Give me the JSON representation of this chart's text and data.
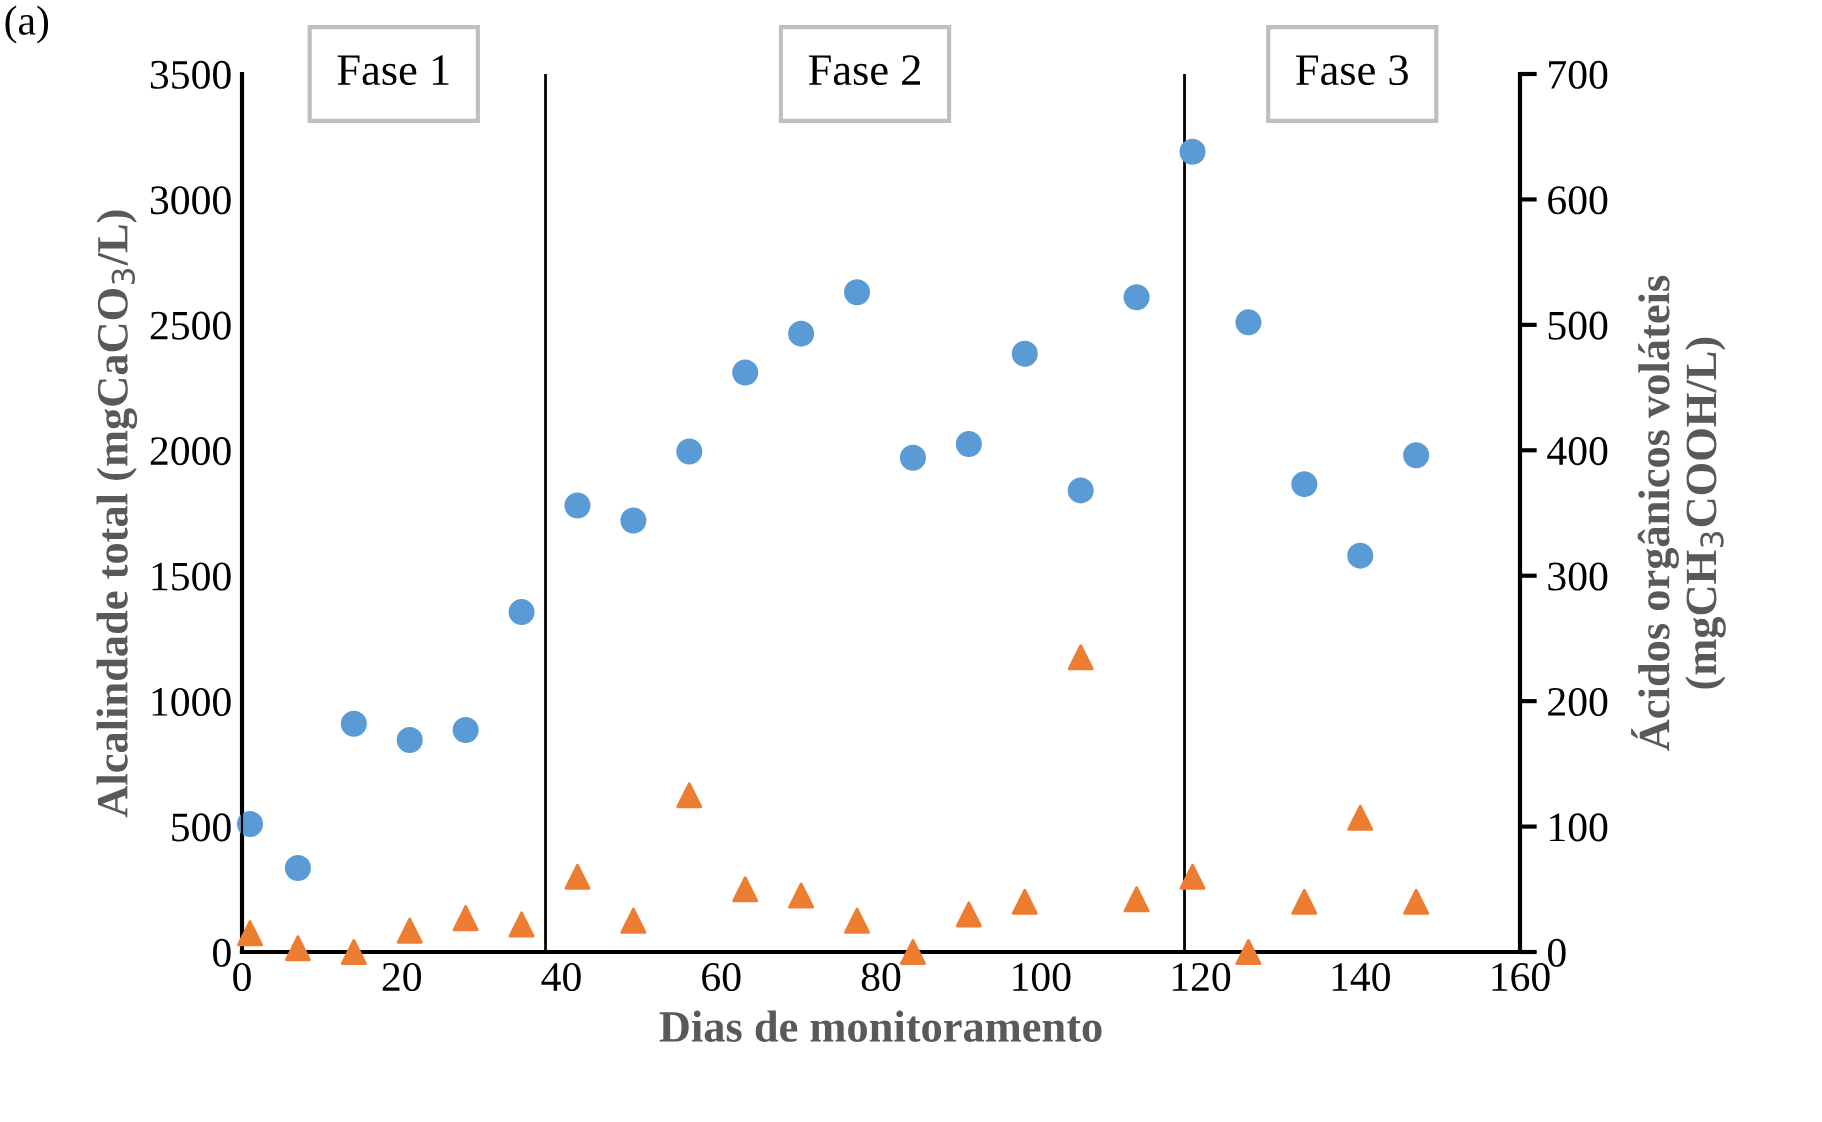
{
  "chart_data": {
    "type": "scatter",
    "xlabel": "Dias de monitoramento",
    "ylabel": "Alcalindade total (mgCaCO$_{3}$/L)",
    "y2label": "Ácidos orgânicos voláteis\n(mgCH$_{3}$COOH/L)",
    "annotations": [
      "(a)",
      "Fase 1",
      "Fase 2",
      "Fase 3"
    ],
    "x": [
      1,
      7,
      14,
      21,
      28,
      35,
      42,
      49,
      56,
      63,
      70,
      77,
      84,
      91,
      98,
      105,
      112,
      119,
      126,
      133,
      140,
      147
    ],
    "series": [
      {
        "color": "#5b9bd5",
        "marker": "circle",
        "values": [
          510,
          335,
          910,
          845,
          885,
          1355,
          1780,
          1720,
          1995,
          2310,
          2465,
          2630,
          1970,
          2025,
          2385,
          1840,
          2610,
          3190,
          2510,
          1865,
          1580,
          1980
        ]
      },
      {
        "color": "#ed7d31",
        "marker": "triangle",
        "axis": "y2",
        "values": [
          15,
          3,
          0,
          17,
          27,
          22,
          60,
          25,
          125,
          50,
          45,
          25,
          0,
          30,
          40,
          235,
          42,
          60,
          0,
          40,
          107,
          40
        ]
      }
    ],
    "xlim": [
      0,
      160
    ],
    "xticks": [
      0,
      20,
      40,
      60,
      80,
      100,
      120,
      140,
      160
    ],
    "ylim": [
      0,
      3500
    ],
    "yticks": [
      0,
      500,
      1000,
      1500,
      2000,
      2500,
      3000,
      3500
    ],
    "y2lim": [
      0,
      700
    ],
    "y2ticks": [
      0,
      100,
      200,
      300,
      400,
      500,
      600,
      700
    ],
    "ref_lines": [
      {
        "axis": "x",
        "value": 38,
        "color": "#000000"
      },
      {
        "axis": "x",
        "value": 118,
        "color": "#000000"
      }
    ],
    "grid": false,
    "legend": false
  }
}
